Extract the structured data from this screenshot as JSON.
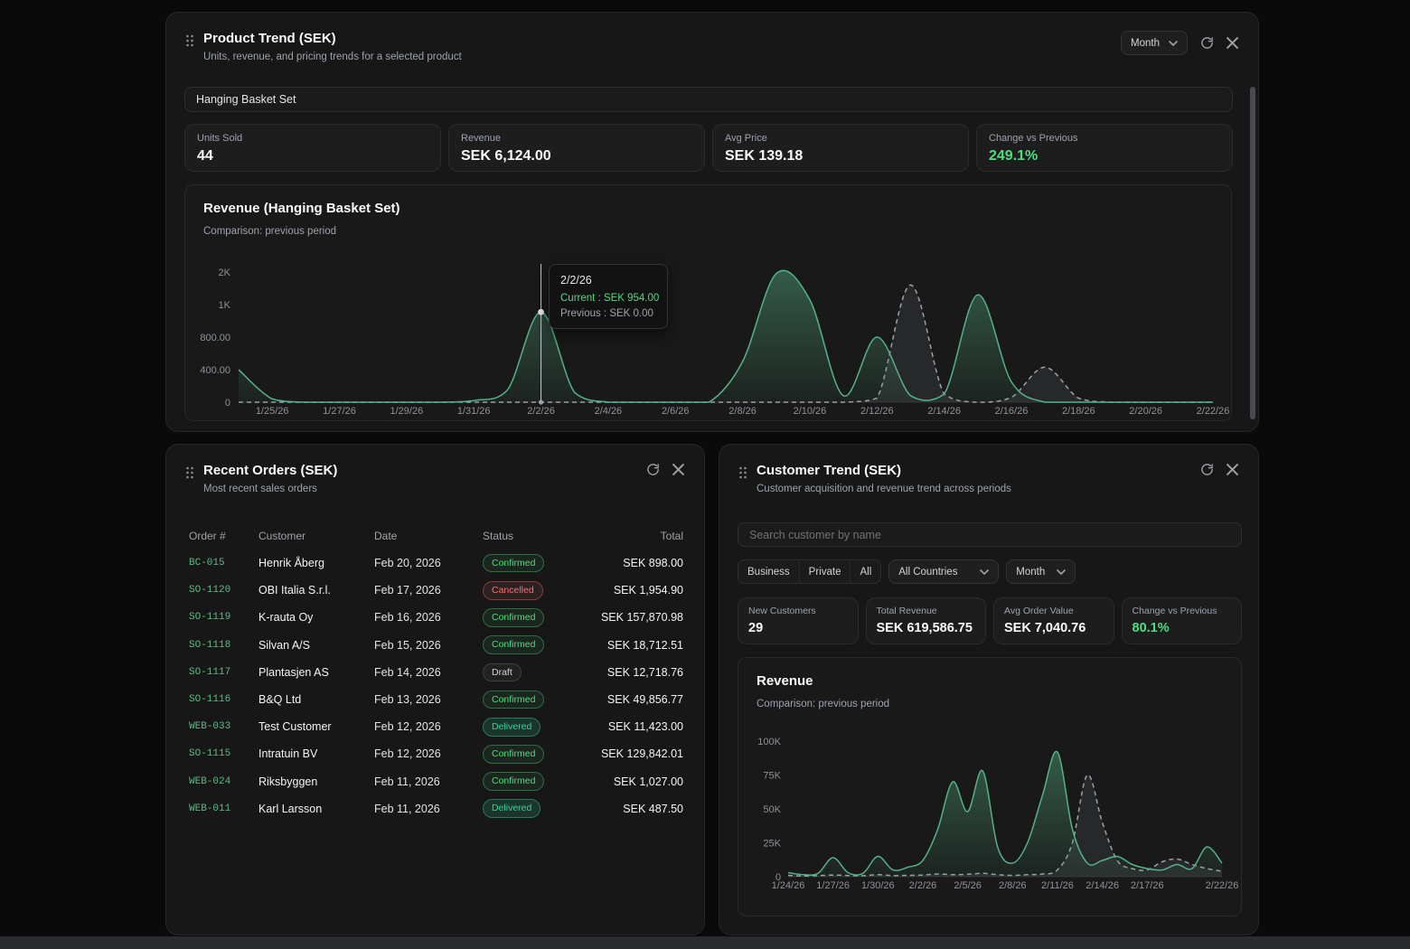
{
  "colors": {
    "accent_green": "#4ade80",
    "chart_current_stroke": "#55b287",
    "chart_previous_stroke": "#98a1ab",
    "status_confirmed": "#4ade80",
    "status_cancelled": "#f87171",
    "status_draft": "#d4d4d8",
    "status_delivered": "#34d399"
  },
  "product_trend": {
    "title": "Product Trend (SEK)",
    "subtitle": "Units, revenue, and pricing trends for a selected product",
    "period_select": "Month",
    "product_input": "Hanging Basket Set",
    "stats": [
      {
        "label": "Units Sold",
        "value": "44"
      },
      {
        "label": "Revenue",
        "value": "SEK 6,124.00"
      },
      {
        "label": "Avg Price",
        "value": "SEK 139.18"
      },
      {
        "label": "Change vs Previous",
        "value": "249.1%"
      }
    ]
  },
  "recent_orders": {
    "title": "Recent Orders (SEK)",
    "subtitle": "Most recent sales orders",
    "columns": [
      "Order #",
      "Customer",
      "Date",
      "Status",
      "Total"
    ],
    "rows": [
      {
        "order": "BC-015",
        "customer": "Henrik Åberg",
        "date": "Feb 20, 2026",
        "status": "Confirmed",
        "total": "SEK 898.00"
      },
      {
        "order": "SO-1120",
        "customer": "OBI Italia S.r.l.",
        "date": "Feb 17, 2026",
        "status": "Cancelled",
        "total": "SEK 1,954.90"
      },
      {
        "order": "SO-1119",
        "customer": "K-rauta Oy",
        "date": "Feb 16, 2026",
        "status": "Confirmed",
        "total": "SEK 157,870.98"
      },
      {
        "order": "SO-1118",
        "customer": "Silvan A/S",
        "date": "Feb 15, 2026",
        "status": "Confirmed",
        "total": "SEK 18,712.51"
      },
      {
        "order": "SO-1117",
        "customer": "Plantasjen AS",
        "date": "Feb 14, 2026",
        "status": "Draft",
        "total": "SEK 12,718.76"
      },
      {
        "order": "SO-1116",
        "customer": "B&Q Ltd",
        "date": "Feb 13, 2026",
        "status": "Confirmed",
        "total": "SEK 49,856.77"
      },
      {
        "order": "WEB-033",
        "customer": "Test Customer",
        "date": "Feb 12, 2026",
        "status": "Delivered",
        "total": "SEK 11,423.00"
      },
      {
        "order": "SO-1115",
        "customer": "Intratuin BV",
        "date": "Feb 12, 2026",
        "status": "Confirmed",
        "total": "SEK 129,842.01"
      },
      {
        "order": "WEB-024",
        "customer": "Riksbyggen",
        "date": "Feb 11, 2026",
        "status": "Confirmed",
        "total": "SEK 1,027.00"
      },
      {
        "order": "WEB-011",
        "customer": "Karl Larsson",
        "date": "Feb 11, 2026",
        "status": "Delivered",
        "total": "SEK 487.50"
      }
    ]
  },
  "customer_trend": {
    "title": "Customer Trend (SEK)",
    "subtitle": "Customer acquisition and revenue trend across periods",
    "search_placeholder": "Search customer by name",
    "segments": [
      "Business",
      "Private",
      "All"
    ],
    "country_select": "All Countries",
    "period_select": "Month",
    "stats": [
      {
        "label": "New Customers",
        "value": "29"
      },
      {
        "label": "Total Revenue",
        "value": "SEK 619,586.75"
      },
      {
        "label": "Avg Order Value",
        "value": "SEK 7,040.76"
      },
      {
        "label": "Change vs Previous",
        "value": "80.1%"
      }
    ]
  },
  "chart_data": [
    {
      "type": "area",
      "title": "Revenue (Hanging Basket Set)",
      "subtitle": "Comparison: previous period",
      "grid": false,
      "legend_position": "none",
      "ylim": [
        0,
        2000
      ],
      "y_ticks": [
        0,
        400,
        800,
        1000,
        2000
      ],
      "y_tick_labels": [
        "0",
        "400.00",
        "800.00",
        "1K",
        "2K"
      ],
      "x": [
        "1/24/26",
        "1/25/26",
        "1/26/26",
        "1/27/26",
        "1/28/26",
        "1/29/26",
        "1/30/26",
        "1/31/26",
        "2/1/26",
        "2/2/26",
        "2/3/26",
        "2/4/26",
        "2/5/26",
        "2/6/26",
        "2/7/26",
        "2/8/26",
        "2/9/26",
        "2/10/26",
        "2/11/26",
        "2/12/26",
        "2/13/26",
        "2/14/26",
        "2/15/26",
        "2/16/26",
        "2/17/26",
        "2/18/26",
        "2/19/26",
        "2/20/26",
        "2/21/26",
        "2/22/26"
      ],
      "x_tick_labels": [
        "1/25/26",
        "1/27/26",
        "1/29/26",
        "1/31/26",
        "2/2/26",
        "2/4/26",
        "2/6/26",
        "2/8/26",
        "2/10/26",
        "2/12/26",
        "2/14/26",
        "2/16/26",
        "2/18/26",
        "2/20/26",
        "2/22/26"
      ],
      "series": [
        {
          "name": "Current",
          "values": [
            400,
            40,
            0,
            0,
            0,
            0,
            0,
            20,
            150,
            954,
            120,
            0,
            0,
            0,
            0,
            500,
            1950,
            1150,
            80,
            800,
            80,
            100,
            1300,
            250,
            0,
            0,
            0,
            0,
            0,
            0
          ]
        },
        {
          "name": "Previous",
          "values": [
            0,
            0,
            0,
            0,
            0,
            0,
            0,
            0,
            0,
            0,
            0,
            0,
            0,
            0,
            0,
            0,
            0,
            0,
            0,
            50,
            1600,
            100,
            0,
            60,
            430,
            50,
            0,
            0,
            0,
            0
          ]
        }
      ],
      "tooltip": {
        "x": "2/2/26",
        "current": "Current : SEK 954.00",
        "previous": "Previous : SEK 0.00"
      }
    },
    {
      "type": "area",
      "title": "Revenue",
      "subtitle": "Comparison: previous period",
      "grid": false,
      "legend_position": "none",
      "ylim": [
        0,
        100000
      ],
      "y_ticks": [
        0,
        25000,
        50000,
        75000,
        100000
      ],
      "y_tick_labels": [
        "0",
        "25K",
        "50K",
        "75K",
        "100K"
      ],
      "x": [
        "1/24/26",
        "1/25/26",
        "1/26/26",
        "1/27/26",
        "1/28/26",
        "1/29/26",
        "1/30/26",
        "1/31/26",
        "2/1/26",
        "2/2/26",
        "2/3/26",
        "2/4/26",
        "2/5/26",
        "2/6/26",
        "2/7/26",
        "2/8/26",
        "2/9/26",
        "2/10/26",
        "2/11/26",
        "2/12/26",
        "2/13/26",
        "2/14/26",
        "2/15/26",
        "2/16/26",
        "2/17/26",
        "2/18/26",
        "2/19/26",
        "2/20/26",
        "2/21/26",
        "2/22/26"
      ],
      "x_tick_labels": [
        "1/24/26",
        "1/27/26",
        "1/30/26",
        "2/2/26",
        "2/5/26",
        "2/8/26",
        "2/11/26",
        "2/14/26",
        "2/17/26",
        "2/22/26"
      ],
      "series": [
        {
          "name": "Current",
          "values": [
            3000,
            1500,
            2500,
            14000,
            3000,
            2500,
            15000,
            5000,
            7000,
            12000,
            35000,
            70000,
            48000,
            78000,
            22000,
            10000,
            25000,
            60000,
            92000,
            35000,
            10000,
            12000,
            15000,
            9000,
            6000,
            5000,
            9000,
            6000,
            22000,
            10000
          ]
        },
        {
          "name": "Previous",
          "values": [
            1000,
            500,
            800,
            1200,
            900,
            700,
            1500,
            800,
            1000,
            1200,
            2000,
            1500,
            1800,
            2500,
            1500,
            1000,
            1500,
            2000,
            5000,
            25000,
            75000,
            40000,
            12000,
            6000,
            5000,
            11000,
            13000,
            9000,
            6000,
            4000
          ]
        }
      ]
    }
  ]
}
